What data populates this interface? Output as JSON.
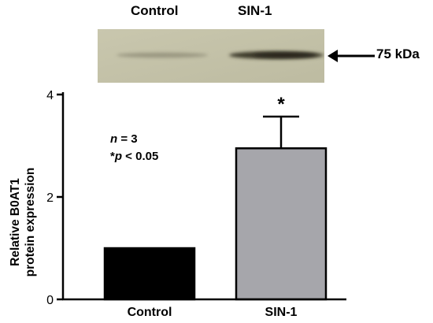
{
  "blot": {
    "lane_labels": [
      "Control",
      "SIN-1"
    ],
    "marker_label": "75 kDa",
    "background_color": "#c2c0a6",
    "band_color": "#3d3a2c"
  },
  "annotations": {
    "n_italic": "n",
    "n_rest": " = 3",
    "p_prefix": "*",
    "p_italic": "p",
    "p_rest": " < 0.05"
  },
  "chart_data": {
    "type": "bar",
    "categories": [
      "Control",
      "SIN-1"
    ],
    "values": [
      1.0,
      2.95
    ],
    "errors": [
      0,
      0.62
    ],
    "colors": [
      "#000000",
      "#a6a6ab"
    ],
    "significance": [
      "",
      "*"
    ],
    "ylabel_lines": [
      "Relative B0AT1",
      "protein expression"
    ],
    "ylim": [
      0,
      4
    ],
    "yticks": [
      0,
      2,
      4
    ],
    "grid": false
  }
}
